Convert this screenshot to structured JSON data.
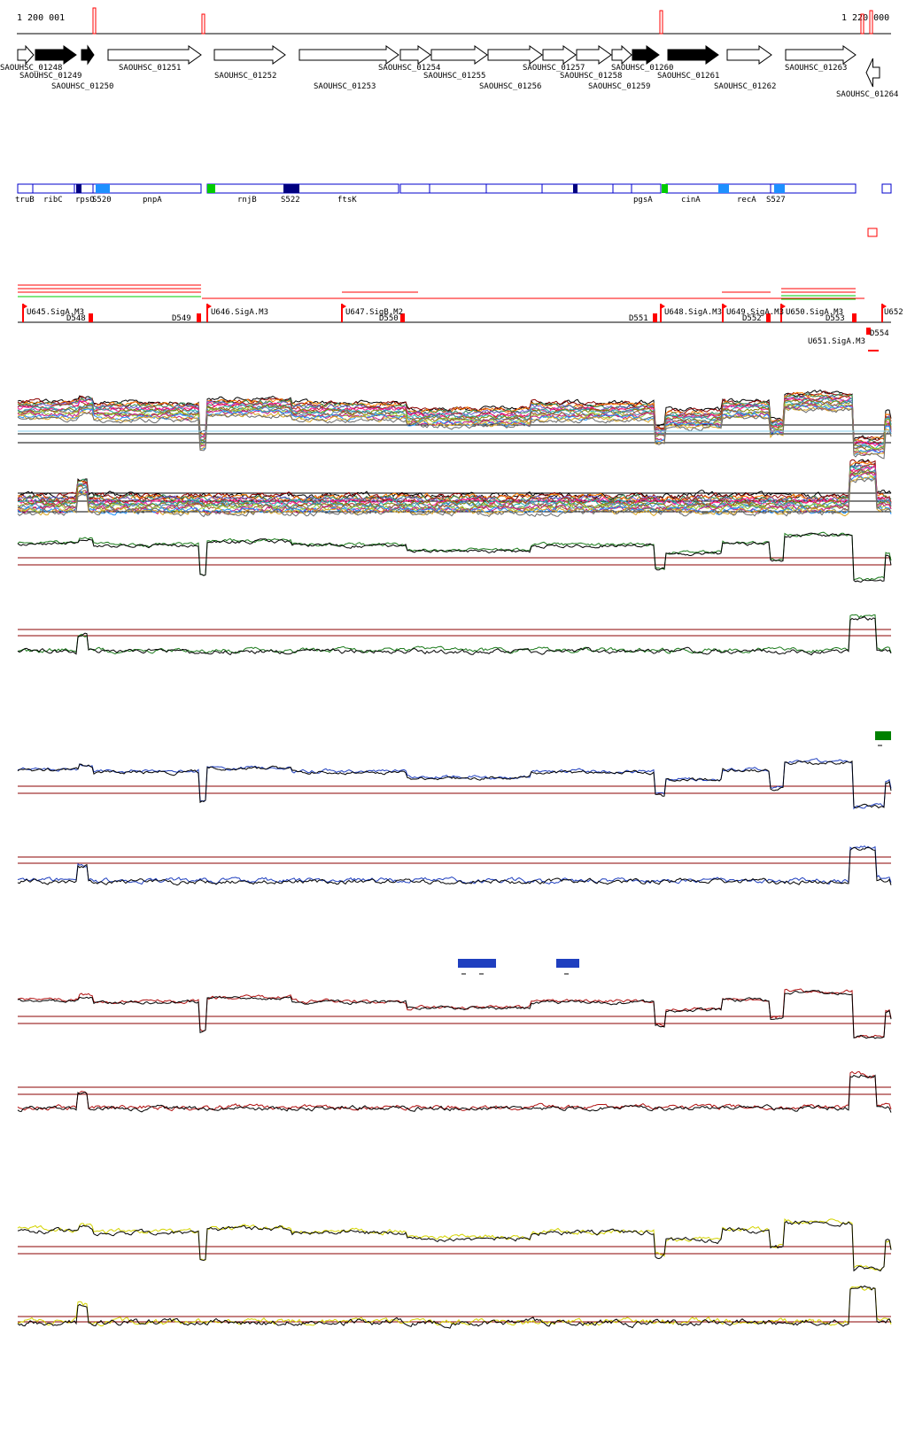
{
  "coordinates": {
    "start_label": "1 200 001",
    "end_label": "1 220 000"
  },
  "genes": [
    {
      "name": "SAOUHSC_01248",
      "strand": "+",
      "fill": "white"
    },
    {
      "name": "SAOUHSC_01249",
      "strand": "+",
      "fill": "black"
    },
    {
      "name": "SAOUHSC_01250",
      "strand": "+",
      "fill": "black"
    },
    {
      "name": "SAOUHSC_01251",
      "strand": "+",
      "fill": "white"
    },
    {
      "name": "SAOUHSC_01252",
      "strand": "+",
      "fill": "white"
    },
    {
      "name": "SAOUHSC_01253",
      "strand": "+",
      "fill": "white"
    },
    {
      "name": "SAOUHSC_01254",
      "strand": "+",
      "fill": "white"
    },
    {
      "name": "SAOUHSC_01255",
      "strand": "+",
      "fill": "white"
    },
    {
      "name": "SAOUHSC_01256",
      "strand": "+",
      "fill": "white"
    },
    {
      "name": "SAOUHSC_01257",
      "strand": "+",
      "fill": "white"
    },
    {
      "name": "SAOUHSC_01258",
      "strand": "+",
      "fill": "white"
    },
    {
      "name": "SAOUHSC_01259",
      "strand": "+",
      "fill": "white"
    },
    {
      "name": "SAOUHSC_01260",
      "strand": "+",
      "fill": "black"
    },
    {
      "name": "SAOUHSC_01261",
      "strand": "+",
      "fill": "black"
    },
    {
      "name": "SAOUHSC_01262",
      "strand": "+",
      "fill": "white"
    },
    {
      "name": "SAOUHSC_01263",
      "strand": "+",
      "fill": "white"
    },
    {
      "name": "SAOUHSC_01264",
      "strand": "-",
      "fill": "white"
    }
  ],
  "features": [
    "truB",
    "ribC",
    "rpsO",
    "S520",
    "pnpA",
    "rnjB",
    "S522",
    "ftsK",
    "pgsA",
    "cinA",
    "recA",
    "S527"
  ],
  "segments": [
    {
      "name": "U645.SigA.M3"
    },
    {
      "name": "D548"
    },
    {
      "name": "D549"
    },
    {
      "name": "U646.SigA.M3"
    },
    {
      "name": "U647.SigB.M2"
    },
    {
      "name": "D550"
    },
    {
      "name": "D551"
    },
    {
      "name": "U648.SigA.M3"
    },
    {
      "name": "U649.SigA.M3"
    },
    {
      "name": "D552"
    },
    {
      "name": "U650.SigA.M3"
    },
    {
      "name": "D553"
    },
    {
      "name": "U652"
    },
    {
      "name": "D554"
    },
    {
      "name": "U651.SigA.M3"
    }
  ],
  "colors": {
    "gene_outline": "#000000",
    "feature_outline": "#0000cc",
    "feature_dark": "#000080",
    "feature_light": "#1e90ff",
    "feature_green": "#00cc00",
    "segment_red": "#ff0000",
    "segment_green": "#00cc00",
    "threshold": "#8b0000",
    "green_track": "#1a7a1a",
    "blue_track": "#1f3fbf",
    "red_track": "#b01010",
    "yellow_track": "#d4d400",
    "black_track": "#000000"
  }
}
